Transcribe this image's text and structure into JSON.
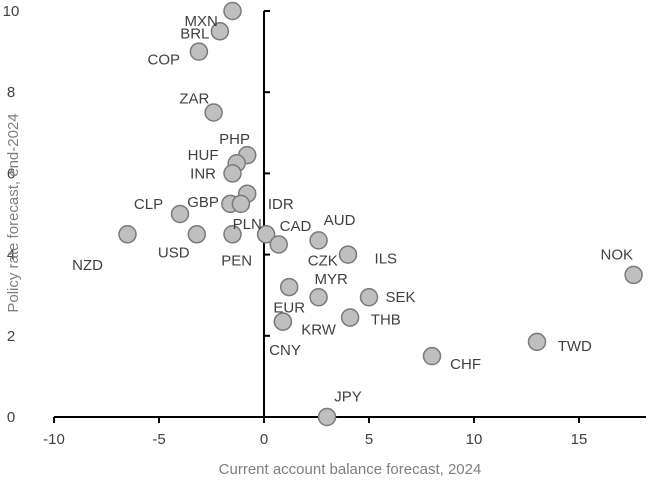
{
  "chart_data": {
    "type": "scatter",
    "title": "",
    "xlabel": "Current account balance forecast, 2024",
    "ylabel": "Policy rate forecast, end-2024",
    "xlim": [
      -10,
      18
    ],
    "ylim": [
      0,
      10
    ],
    "xticks": [
      -10,
      -5,
      0,
      5,
      10,
      15
    ],
    "yticks": [
      0,
      2,
      4,
      6,
      8,
      10
    ],
    "grid": false,
    "legend": "none",
    "colors": {
      "point_fill": "#bfbfbf",
      "point_stroke": "#7a7a7a",
      "text": "#404040",
      "axis_title": "#7f7f7f"
    },
    "points": [
      {
        "label": "MXN",
        "x": -1.5,
        "y": 10.0,
        "lx": -2.2,
        "ly": 9.75,
        "anchor": "end"
      },
      {
        "label": "BRL",
        "x": -2.1,
        "y": 9.5,
        "lx": -2.6,
        "ly": 9.45,
        "anchor": "end"
      },
      {
        "label": "COP",
        "x": -3.1,
        "y": 9.0,
        "lx": -4.0,
        "ly": 8.8,
        "anchor": "end"
      },
      {
        "label": "ZAR",
        "x": -2.4,
        "y": 7.5,
        "lx": -2.6,
        "ly": 7.85,
        "anchor": "end"
      },
      {
        "label": "PHP",
        "x": -0.8,
        "y": 6.45,
        "lx": -1.4,
        "ly": 6.85,
        "anchor": "middle"
      },
      {
        "label": "HUF",
        "x": -1.3,
        "y": 6.25,
        "lx": -2.9,
        "ly": 6.45,
        "anchor": "middle"
      },
      {
        "label": "INR",
        "x": -1.5,
        "y": 6.0,
        "lx": -2.9,
        "ly": 6.0,
        "anchor": "middle"
      },
      {
        "label": "GBP",
        "x": -1.6,
        "y": 5.25,
        "lx": -2.9,
        "ly": 5.3,
        "anchor": "middle"
      },
      {
        "label": "IDR",
        "x": -0.8,
        "y": 5.5,
        "lx": 0.8,
        "ly": 5.25,
        "anchor": "middle"
      },
      {
        "label": "PLN",
        "x": -1.1,
        "y": 5.25,
        "lx": -0.8,
        "ly": 4.75,
        "anchor": "middle"
      },
      {
        "label": "CLP",
        "x": -4.0,
        "y": 5.0,
        "lx": -5.5,
        "ly": 5.25,
        "anchor": "middle"
      },
      {
        "label": "CAD",
        "x": 0.1,
        "y": 4.5,
        "lx": 1.5,
        "ly": 4.7,
        "anchor": "middle"
      },
      {
        "label": "AUD",
        "x": 2.6,
        "y": 4.35,
        "lx": 3.6,
        "ly": 4.85,
        "anchor": "middle"
      },
      {
        "label": "USD",
        "x": -3.2,
        "y": 4.5,
        "lx": -4.3,
        "ly": 4.05,
        "anchor": "middle"
      },
      {
        "label": "PEN",
        "x": -1.5,
        "y": 4.5,
        "lx": -1.3,
        "ly": 3.85,
        "anchor": "middle"
      },
      {
        "label": "NZD",
        "x": -6.5,
        "y": 4.5,
        "lx": -8.4,
        "ly": 3.75,
        "anchor": "middle"
      },
      {
        "label": "CZK",
        "x": 0.7,
        "y": 4.25,
        "lx": 2.8,
        "ly": 3.85,
        "anchor": "middle"
      },
      {
        "label": "ILS",
        "x": 4.0,
        "y": 4.0,
        "lx": 5.8,
        "ly": 3.9,
        "anchor": "middle"
      },
      {
        "label": "NOK",
        "x": 17.6,
        "y": 3.5,
        "lx": 16.8,
        "ly": 4.0,
        "anchor": "middle"
      },
      {
        "label": "MYR",
        "x": 1.2,
        "y": 3.2,
        "lx": 3.2,
        "ly": 3.4,
        "anchor": "middle"
      },
      {
        "label": "EUR",
        "x": 2.6,
        "y": 2.95,
        "lx": 1.2,
        "ly": 2.7,
        "anchor": "middle"
      },
      {
        "label": "SEK",
        "x": 5.0,
        "y": 2.95,
        "lx": 6.5,
        "ly": 2.95,
        "anchor": "middle"
      },
      {
        "label": "THB",
        "x": 4.1,
        "y": 2.45,
        "lx": 5.8,
        "ly": 2.4,
        "anchor": "middle"
      },
      {
        "label": "KRW",
        "x": 0.9,
        "y": 2.35,
        "lx": 2.6,
        "ly": 2.15,
        "anchor": "middle"
      },
      {
        "label": "CNY",
        "x": 0.9,
        "y": 2.35,
        "lx": 1.0,
        "ly": 1.65,
        "anchor": "middle"
      },
      {
        "label": "TWD",
        "x": 13.0,
        "y": 1.85,
        "lx": 14.8,
        "ly": 1.75,
        "anchor": "middle"
      },
      {
        "label": "CHF",
        "x": 8.0,
        "y": 1.5,
        "lx": 9.6,
        "ly": 1.3,
        "anchor": "middle"
      },
      {
        "label": "JPY",
        "x": 3.0,
        "y": 0.0,
        "lx": 4.0,
        "ly": 0.5,
        "anchor": "middle"
      }
    ]
  }
}
